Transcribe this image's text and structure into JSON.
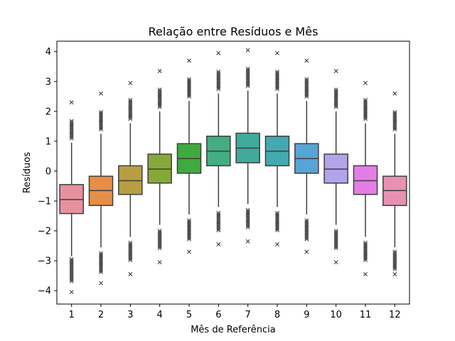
{
  "chart_data": {
    "type": "box",
    "title": "Relação entre Resíduos e Mês",
    "xlabel": "Mês de Referência",
    "ylabel": "Resíduos",
    "ylim": [
      -4.45,
      4.35
    ],
    "yticks": [
      -4,
      -3,
      -2,
      -1,
      0,
      1,
      2,
      3,
      4
    ],
    "yticklabels": [
      "−4",
      "−3",
      "−2",
      "−1",
      "0",
      "1",
      "2",
      "3",
      "4"
    ],
    "grid": false,
    "categories": [
      "1",
      "2",
      "3",
      "4",
      "5",
      "6",
      "7",
      "8",
      "9",
      "10",
      "11",
      "12"
    ],
    "colors": [
      "#e8919e",
      "#e68e48",
      "#b79e42",
      "#86a839",
      "#3faa3e",
      "#44ad83",
      "#40aa9b",
      "#43a9b0",
      "#57a4d6",
      "#b3a3eb",
      "#e37de6",
      "#e890b2"
    ],
    "boxes": [
      {
        "q1": -1.42,
        "median": -0.95,
        "q3": -0.45,
        "whisker_low": -2.85,
        "whisker_high": 0.95,
        "outliers_low": [
          -4.05,
          -3.7,
          -3.5,
          -3.3,
          -3.1,
          -2.95
        ],
        "outliers_high": [
          1.1,
          1.3,
          1.5,
          1.7,
          2.3
        ]
      },
      {
        "q1": -1.15,
        "median": -0.65,
        "q3": -0.17,
        "whisker_low": -2.55,
        "whisker_high": 1.25,
        "outliers_low": [
          -3.75,
          -3.4,
          -3.2,
          -3.0,
          -2.75
        ],
        "outliers_high": [
          1.4,
          1.6,
          1.8,
          2.0,
          2.6
        ]
      },
      {
        "q1": -0.78,
        "median": -0.32,
        "q3": 0.18,
        "whisker_low": -2.2,
        "whisker_high": 1.6,
        "outliers_low": [
          -3.45,
          -3.0,
          -2.8,
          -2.6,
          -2.4
        ],
        "outliers_high": [
          1.75,
          1.95,
          2.15,
          2.4,
          2.95
        ]
      },
      {
        "q1": -0.4,
        "median": 0.07,
        "q3": 0.57,
        "whisker_low": -1.8,
        "whisker_high": 2.0,
        "outliers_low": [
          -3.05,
          -2.6,
          -2.4,
          -2.2,
          -2.0
        ],
        "outliers_high": [
          2.15,
          2.35,
          2.55,
          2.75,
          3.35
        ]
      },
      {
        "q1": -0.07,
        "median": 0.42,
        "q3": 0.92,
        "whisker_low": -1.45,
        "whisker_high": 2.35,
        "outliers_low": [
          -2.7,
          -2.3,
          -2.1,
          -1.9,
          -1.65
        ],
        "outliers_high": [
          2.5,
          2.7,
          2.9,
          3.1,
          3.7
        ]
      },
      {
        "q1": 0.18,
        "median": 0.67,
        "q3": 1.17,
        "whisker_low": -1.2,
        "whisker_high": 2.6,
        "outliers_low": [
          -2.45,
          -2.0,
          -1.8,
          -1.6,
          -1.4
        ],
        "outliers_high": [
          2.75,
          2.95,
          3.15,
          3.35,
          3.95
        ]
      },
      {
        "q1": 0.28,
        "median": 0.77,
        "q3": 1.27,
        "whisker_low": -1.1,
        "whisker_high": 2.7,
        "outliers_low": [
          -2.35,
          -1.9,
          -1.7,
          -1.5,
          -1.3
        ],
        "outliers_high": [
          2.85,
          3.05,
          3.25,
          3.45,
          4.05
        ]
      },
      {
        "q1": 0.18,
        "median": 0.67,
        "q3": 1.17,
        "whisker_low": -1.2,
        "whisker_high": 2.6,
        "outliers_low": [
          -2.45,
          -2.0,
          -1.8,
          -1.6,
          -1.4
        ],
        "outliers_high": [
          2.75,
          2.95,
          3.15,
          3.35,
          3.95
        ]
      },
      {
        "q1": -0.07,
        "median": 0.42,
        "q3": 0.92,
        "whisker_low": -1.45,
        "whisker_high": 2.35,
        "outliers_low": [
          -2.7,
          -2.3,
          -2.1,
          -1.9,
          -1.65
        ],
        "outliers_high": [
          2.5,
          2.7,
          2.9,
          3.1,
          3.7
        ]
      },
      {
        "q1": -0.4,
        "median": 0.07,
        "q3": 0.57,
        "whisker_low": -1.8,
        "whisker_high": 2.0,
        "outliers_low": [
          -3.05,
          -2.6,
          -2.4,
          -2.2,
          -2.0
        ],
        "outliers_high": [
          2.15,
          2.35,
          2.55,
          2.75,
          3.35
        ]
      },
      {
        "q1": -0.78,
        "median": -0.32,
        "q3": 0.18,
        "whisker_low": -2.2,
        "whisker_high": 1.6,
        "outliers_low": [
          -3.45,
          -3.0,
          -2.8,
          -2.6,
          -2.4
        ],
        "outliers_high": [
          1.75,
          1.95,
          2.15,
          2.4,
          2.95
        ]
      },
      {
        "q1": -1.15,
        "median": -0.65,
        "q3": -0.17,
        "whisker_low": -2.55,
        "whisker_high": 1.25,
        "outliers_low": [
          -3.45,
          -3.3,
          -3.1,
          -2.9,
          -2.7
        ],
        "outliers_high": [
          1.4,
          1.6,
          1.8,
          2.0,
          2.6
        ]
      }
    ]
  }
}
